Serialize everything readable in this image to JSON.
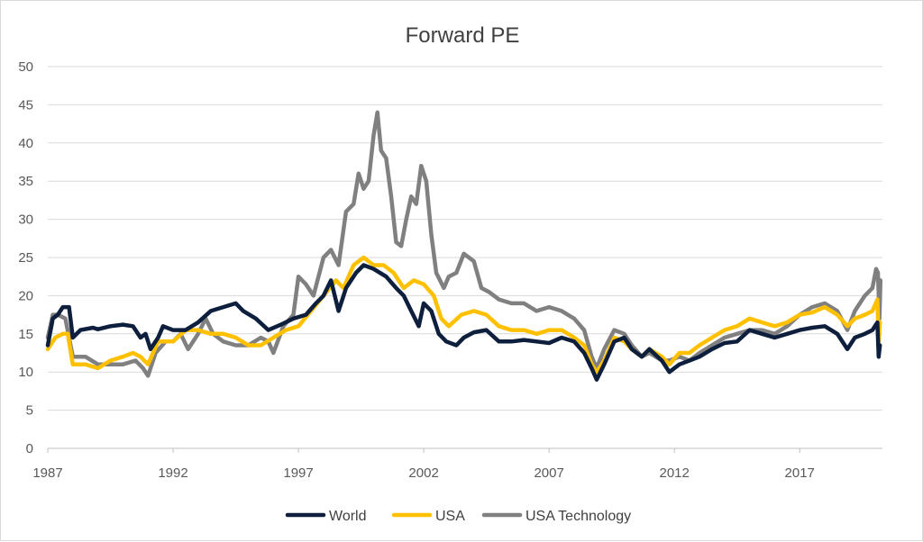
{
  "chart_data": {
    "type": "line",
    "title": "Forward PE",
    "xlabel": "",
    "ylabel": "",
    "xlim": [
      1987,
      2020.3
    ],
    "ylim": [
      0,
      50
    ],
    "x_ticks": [
      "1987",
      "1992",
      "1997",
      "2002",
      "2007",
      "2012",
      "2017"
    ],
    "y_ticks": [
      "0",
      "5",
      "10",
      "15",
      "20",
      "25",
      "30",
      "35",
      "40",
      "45",
      "50"
    ],
    "grid": true,
    "legend_position": "bottom",
    "series": [
      {
        "name": "World",
        "color": "#0d1f3c",
        "points": [
          [
            1987.0,
            13.5
          ],
          [
            1987.2,
            17.0
          ],
          [
            1987.4,
            17.5
          ],
          [
            1987.6,
            18.5
          ],
          [
            1987.85,
            18.5
          ],
          [
            1988.0,
            14.5
          ],
          [
            1988.3,
            15.5
          ],
          [
            1988.8,
            15.8
          ],
          [
            1989.0,
            15.6
          ],
          [
            1989.5,
            16.0
          ],
          [
            1990.0,
            16.2
          ],
          [
            1990.4,
            16.0
          ],
          [
            1990.7,
            14.5
          ],
          [
            1990.9,
            15.0
          ],
          [
            1991.1,
            13.0
          ],
          [
            1991.4,
            14.5
          ],
          [
            1991.6,
            16.0
          ],
          [
            1992.0,
            15.5
          ],
          [
            1992.5,
            15.5
          ],
          [
            1993.0,
            16.5
          ],
          [
            1993.5,
            18.0
          ],
          [
            1994.0,
            18.5
          ],
          [
            1994.5,
            19.0
          ],
          [
            1994.8,
            18.0
          ],
          [
            1995.3,
            17.0
          ],
          [
            1995.8,
            15.5
          ],
          [
            1996.3,
            16.2
          ],
          [
            1996.8,
            17.0
          ],
          [
            1997.3,
            17.5
          ],
          [
            1997.7,
            19.0
          ],
          [
            1998.0,
            20.0
          ],
          [
            1998.3,
            22.0
          ],
          [
            1998.6,
            18.0
          ],
          [
            1998.9,
            21.0
          ],
          [
            1999.3,
            23.0
          ],
          [
            1999.6,
            24.0
          ],
          [
            2000.0,
            23.5
          ],
          [
            2000.5,
            22.5
          ],
          [
            2000.9,
            21.0
          ],
          [
            2001.2,
            20.0
          ],
          [
            2001.5,
            18.0
          ],
          [
            2001.8,
            16.0
          ],
          [
            2002.0,
            19.0
          ],
          [
            2002.3,
            18.0
          ],
          [
            2002.6,
            15.0
          ],
          [
            2002.9,
            14.0
          ],
          [
            2003.3,
            13.5
          ],
          [
            2003.6,
            14.5
          ],
          [
            2004.0,
            15.2
          ],
          [
            2004.5,
            15.5
          ],
          [
            2005.0,
            14.0
          ],
          [
            2005.5,
            14.0
          ],
          [
            2006.0,
            14.2
          ],
          [
            2006.5,
            14.0
          ],
          [
            2007.0,
            13.8
          ],
          [
            2007.5,
            14.5
          ],
          [
            2008.0,
            14.0
          ],
          [
            2008.4,
            12.5
          ],
          [
            2008.7,
            10.5
          ],
          [
            2008.9,
            9.0
          ],
          [
            2009.2,
            11.0
          ],
          [
            2009.6,
            14.0
          ],
          [
            2010.0,
            14.5
          ],
          [
            2010.3,
            13.0
          ],
          [
            2010.7,
            12.0
          ],
          [
            2011.0,
            13.0
          ],
          [
            2011.5,
            11.5
          ],
          [
            2011.8,
            10.0
          ],
          [
            2012.2,
            11.0
          ],
          [
            2012.6,
            11.5
          ],
          [
            2013.0,
            12.0
          ],
          [
            2013.5,
            13.0
          ],
          [
            2014.0,
            13.8
          ],
          [
            2014.5,
            14.0
          ],
          [
            2015.0,
            15.5
          ],
          [
            2015.5,
            15.0
          ],
          [
            2016.0,
            14.5
          ],
          [
            2016.5,
            15.0
          ],
          [
            2017.0,
            15.5
          ],
          [
            2017.5,
            15.8
          ],
          [
            2018.0,
            16.0
          ],
          [
            2018.5,
            15.0
          ],
          [
            2018.9,
            13.0
          ],
          [
            2019.2,
            14.5
          ],
          [
            2019.6,
            15.0
          ],
          [
            2019.9,
            15.5
          ],
          [
            2020.1,
            16.5
          ],
          [
            2020.15,
            12.0
          ],
          [
            2020.2,
            13.5
          ]
        ]
      },
      {
        "name": "USA",
        "color": "#ffc000",
        "points": [
          [
            1987.0,
            13.0
          ],
          [
            1987.3,
            14.5
          ],
          [
            1987.6,
            15.0
          ],
          [
            1987.8,
            15.0
          ],
          [
            1988.0,
            11.0
          ],
          [
            1988.5,
            11.0
          ],
          [
            1989.0,
            10.5
          ],
          [
            1989.5,
            11.5
          ],
          [
            1990.0,
            12.0
          ],
          [
            1990.4,
            12.5
          ],
          [
            1990.7,
            12.0
          ],
          [
            1991.0,
            11.0
          ],
          [
            1991.4,
            14.0
          ],
          [
            1992.0,
            14.0
          ],
          [
            1992.5,
            15.5
          ],
          [
            1993.0,
            15.5
          ],
          [
            1993.5,
            15.0
          ],
          [
            1994.0,
            15.0
          ],
          [
            1994.5,
            14.5
          ],
          [
            1995.0,
            13.5
          ],
          [
            1995.5,
            13.5
          ],
          [
            1996.0,
            14.5
          ],
          [
            1996.5,
            15.5
          ],
          [
            1997.0,
            16.0
          ],
          [
            1997.5,
            18.0
          ],
          [
            1998.0,
            20.0
          ],
          [
            1998.5,
            22.0
          ],
          [
            1998.8,
            21.0
          ],
          [
            1999.2,
            24.0
          ],
          [
            1999.6,
            25.0
          ],
          [
            2000.0,
            24.0
          ],
          [
            2000.4,
            24.0
          ],
          [
            2000.8,
            23.0
          ],
          [
            2001.2,
            21.0
          ],
          [
            2001.6,
            22.0
          ],
          [
            2002.0,
            21.5
          ],
          [
            2002.4,
            20.0
          ],
          [
            2002.7,
            17.0
          ],
          [
            2003.0,
            16.0
          ],
          [
            2003.5,
            17.5
          ],
          [
            2004.0,
            18.0
          ],
          [
            2004.5,
            17.5
          ],
          [
            2005.0,
            16.0
          ],
          [
            2005.5,
            15.5
          ],
          [
            2006.0,
            15.5
          ],
          [
            2006.5,
            15.0
          ],
          [
            2007.0,
            15.5
          ],
          [
            2007.5,
            15.5
          ],
          [
            2008.0,
            14.5
          ],
          [
            2008.4,
            13.5
          ],
          [
            2008.7,
            11.0
          ],
          [
            2008.9,
            10.0
          ],
          [
            2009.2,
            11.5
          ],
          [
            2009.6,
            14.5
          ],
          [
            2010.0,
            14.0
          ],
          [
            2010.3,
            13.0
          ],
          [
            2010.7,
            12.0
          ],
          [
            2011.0,
            13.0
          ],
          [
            2011.5,
            12.0
          ],
          [
            2011.8,
            11.0
          ],
          [
            2012.2,
            12.5
          ],
          [
            2012.6,
            12.5
          ],
          [
            2013.0,
            13.5
          ],
          [
            2013.5,
            14.5
          ],
          [
            2014.0,
            15.5
          ],
          [
            2014.5,
            16.0
          ],
          [
            2015.0,
            17.0
          ],
          [
            2015.5,
            16.5
          ],
          [
            2016.0,
            16.0
          ],
          [
            2016.5,
            16.5
          ],
          [
            2017.0,
            17.5
          ],
          [
            2017.5,
            17.8
          ],
          [
            2018.0,
            18.5
          ],
          [
            2018.5,
            17.5
          ],
          [
            2018.9,
            16.0
          ],
          [
            2019.2,
            17.0
          ],
          [
            2019.6,
            17.5
          ],
          [
            2019.9,
            18.0
          ],
          [
            2020.1,
            19.5
          ],
          [
            2020.15,
            14.0
          ],
          [
            2020.2,
            16.5
          ]
        ]
      },
      {
        "name": "USA Technology",
        "color": "#808080",
        "points": [
          [
            1987.0,
            14.5
          ],
          [
            1987.2,
            17.5
          ],
          [
            1987.4,
            17.5
          ],
          [
            1987.7,
            17.0
          ],
          [
            1988.0,
            12.0
          ],
          [
            1988.5,
            12.0
          ],
          [
            1989.0,
            11.0
          ],
          [
            1989.5,
            11.0
          ],
          [
            1990.0,
            11.0
          ],
          [
            1990.5,
            11.5
          ],
          [
            1990.8,
            10.5
          ],
          [
            1991.0,
            9.5
          ],
          [
            1991.3,
            12.5
          ],
          [
            1991.7,
            14.0
          ],
          [
            1992.0,
            14.0
          ],
          [
            1992.3,
            15.0
          ],
          [
            1992.6,
            13.0
          ],
          [
            1993.0,
            15.0
          ],
          [
            1993.3,
            17.0
          ],
          [
            1993.6,
            15.0
          ],
          [
            1994.0,
            14.0
          ],
          [
            1994.5,
            13.5
          ],
          [
            1995.0,
            13.5
          ],
          [
            1995.5,
            14.5
          ],
          [
            1995.8,
            14.0
          ],
          [
            1996.0,
            12.5
          ],
          [
            1996.4,
            16.0
          ],
          [
            1996.8,
            17.5
          ],
          [
            1997.0,
            22.5
          ],
          [
            1997.3,
            21.5
          ],
          [
            1997.6,
            20.0
          ],
          [
            1998.0,
            25.0
          ],
          [
            1998.3,
            26.0
          ],
          [
            1998.6,
            24.0
          ],
          [
            1998.9,
            31.0
          ],
          [
            1999.2,
            32.0
          ],
          [
            1999.4,
            36.0
          ],
          [
            1999.6,
            34.0
          ],
          [
            1999.8,
            35.0
          ],
          [
            2000.0,
            41.0
          ],
          [
            2000.15,
            44.0
          ],
          [
            2000.3,
            39.0
          ],
          [
            2000.5,
            38.0
          ],
          [
            2000.7,
            33.0
          ],
          [
            2000.9,
            27.0
          ],
          [
            2001.1,
            26.5
          ],
          [
            2001.3,
            30.0
          ],
          [
            2001.5,
            33.0
          ],
          [
            2001.7,
            32.0
          ],
          [
            2001.9,
            37.0
          ],
          [
            2002.1,
            35.0
          ],
          [
            2002.3,
            28.0
          ],
          [
            2002.5,
            23.0
          ],
          [
            2002.8,
            21.0
          ],
          [
            2003.0,
            22.5
          ],
          [
            2003.3,
            23.0
          ],
          [
            2003.6,
            25.5
          ],
          [
            2004.0,
            24.5
          ],
          [
            2004.3,
            21.0
          ],
          [
            2004.6,
            20.5
          ],
          [
            2005.0,
            19.5
          ],
          [
            2005.5,
            19.0
          ],
          [
            2006.0,
            19.0
          ],
          [
            2006.5,
            18.0
          ],
          [
            2007.0,
            18.5
          ],
          [
            2007.5,
            18.0
          ],
          [
            2008.0,
            17.0
          ],
          [
            2008.4,
            15.5
          ],
          [
            2008.7,
            12.0
          ],
          [
            2008.9,
            10.5
          ],
          [
            2009.2,
            13.0
          ],
          [
            2009.6,
            15.5
          ],
          [
            2010.0,
            15.0
          ],
          [
            2010.3,
            13.5
          ],
          [
            2010.7,
            12.0
          ],
          [
            2011.0,
            12.5
          ],
          [
            2011.5,
            11.5
          ],
          [
            2011.8,
            11.5
          ],
          [
            2012.2,
            12.0
          ],
          [
            2012.6,
            11.5
          ],
          [
            2013.0,
            12.5
          ],
          [
            2013.5,
            13.5
          ],
          [
            2014.0,
            14.5
          ],
          [
            2014.5,
            15.0
          ],
          [
            2015.0,
            15.5
          ],
          [
            2015.5,
            15.5
          ],
          [
            2016.0,
            15.0
          ],
          [
            2016.5,
            16.0
          ],
          [
            2017.0,
            17.5
          ],
          [
            2017.5,
            18.5
          ],
          [
            2018.0,
            19.0
          ],
          [
            2018.5,
            18.0
          ],
          [
            2018.9,
            15.5
          ],
          [
            2019.2,
            18.0
          ],
          [
            2019.6,
            20.0
          ],
          [
            2019.9,
            21.0
          ],
          [
            2020.05,
            23.5
          ],
          [
            2020.12,
            23.0
          ],
          [
            2020.18,
            17.0
          ],
          [
            2020.22,
            22.0
          ]
        ]
      }
    ]
  }
}
